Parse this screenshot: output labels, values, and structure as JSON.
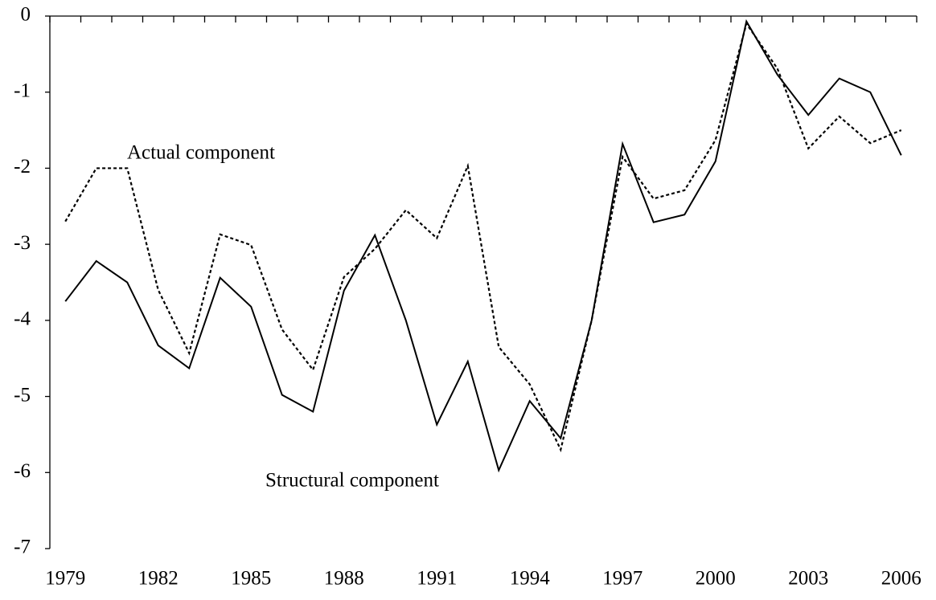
{
  "chart_data": {
    "type": "line",
    "categories": [
      "1979",
      null,
      null,
      "1982",
      null,
      null,
      "1985",
      null,
      null,
      "1988",
      null,
      null,
      "1991",
      null,
      null,
      "1994",
      null,
      null,
      "1997",
      null,
      null,
      "2000",
      null,
      null,
      "2003",
      null,
      null,
      "2006"
    ],
    "series": [
      {
        "name": "Structural component",
        "color": "#000000",
        "dash": "solid",
        "values": [
          -3.75,
          -3.22,
          -3.5,
          -4.33,
          -4.63,
          -3.44,
          -3.82,
          -4.98,
          -5.2,
          -3.61,
          -2.88,
          -4.0,
          -5.37,
          -4.54,
          -5.97,
          -5.06,
          -5.55,
          -4.0,
          -1.68,
          -2.71,
          -2.61,
          -1.91,
          -0.07,
          -0.77,
          -1.3,
          -0.82,
          -1.0,
          -1.83
        ]
      },
      {
        "name": "Actual component",
        "color": "#000000",
        "dash": "dotted",
        "values": [
          -2.7,
          -2.0,
          -2.0,
          -3.6,
          -4.43,
          -2.87,
          -3.01,
          -4.12,
          -4.65,
          -3.43,
          -3.06,
          -2.55,
          -2.92,
          -1.97,
          -4.35,
          -4.84,
          -5.7,
          -4.0,
          -1.85,
          -2.4,
          -2.29,
          -1.63,
          -0.1,
          -0.69,
          -1.74,
          -1.32,
          -1.67,
          -1.5
        ]
      }
    ],
    "ylim": [
      -7,
      0
    ],
    "yticks": [
      0,
      -1,
      -2,
      -3,
      -4,
      -5,
      -6,
      -7
    ],
    "grid": false
  }
}
